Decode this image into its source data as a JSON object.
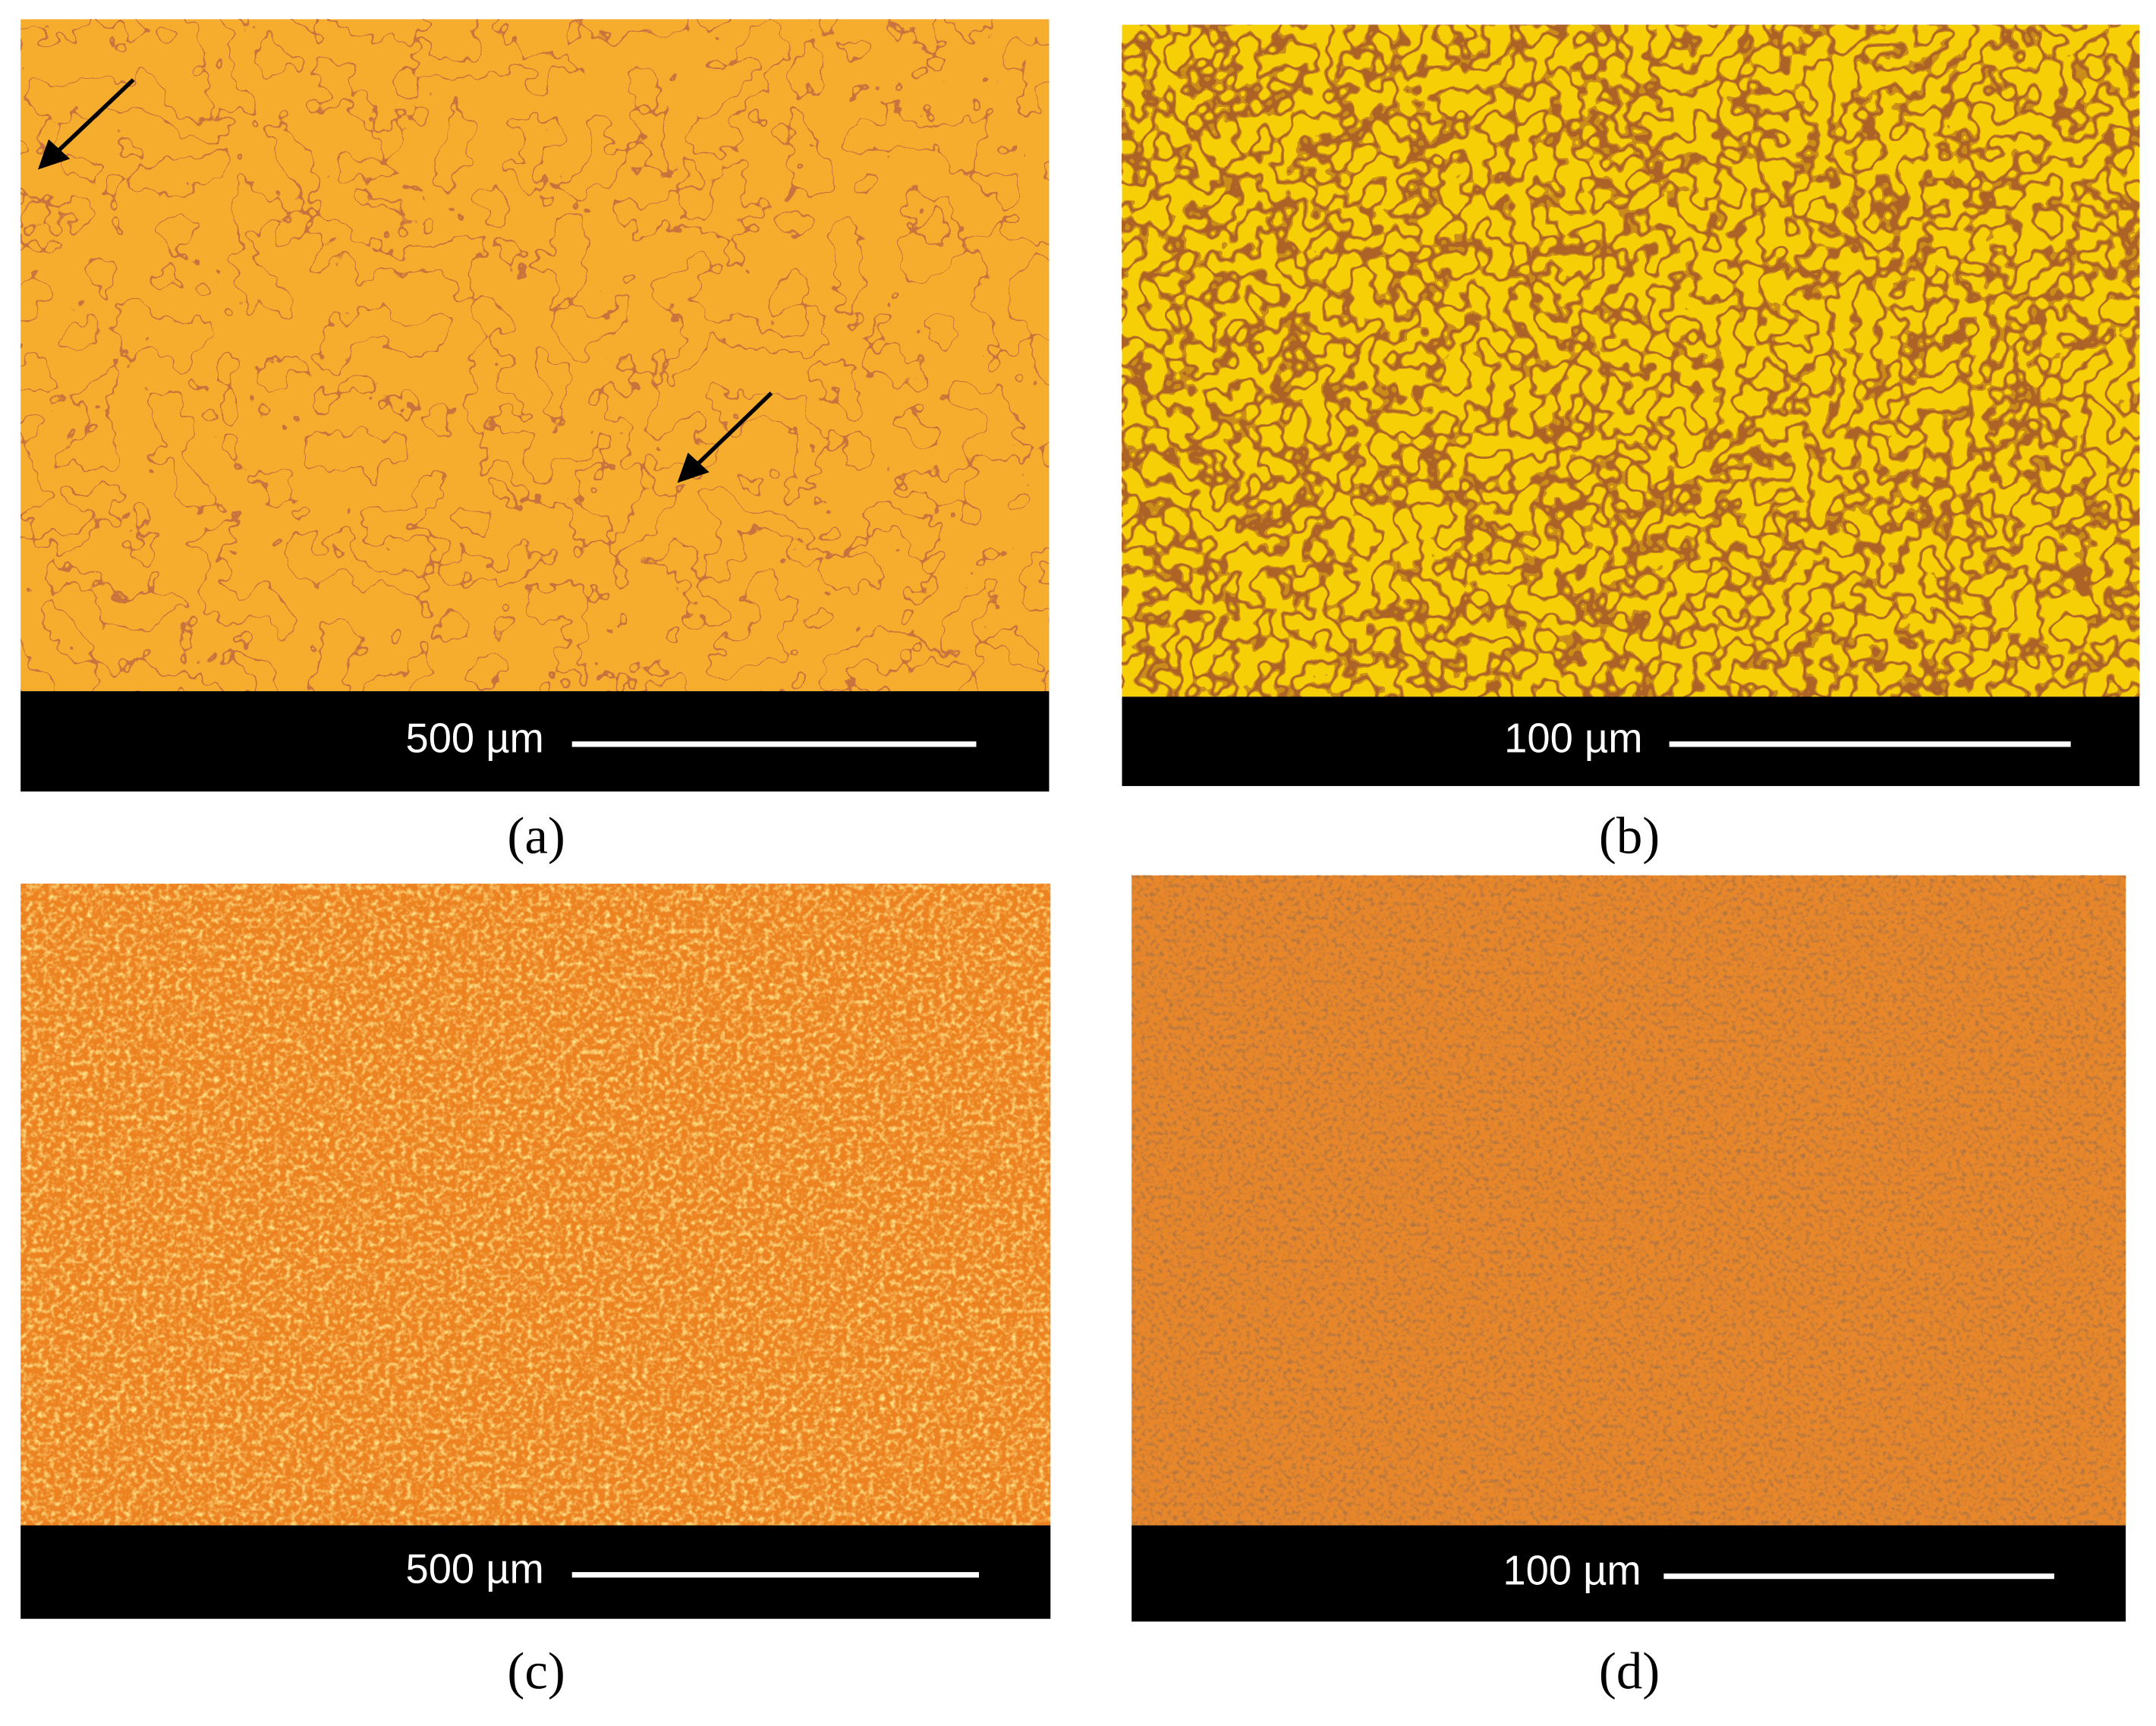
{
  "panels": [
    {
      "label": "(a)",
      "scale_bar": "500 µm"
    },
    {
      "label": "(b)",
      "scale_bar": "100 µm"
    },
    {
      "label": "(c)",
      "scale_bar": "500 µm"
    },
    {
      "label": "(d)",
      "scale_bar": "100 µm"
    }
  ]
}
